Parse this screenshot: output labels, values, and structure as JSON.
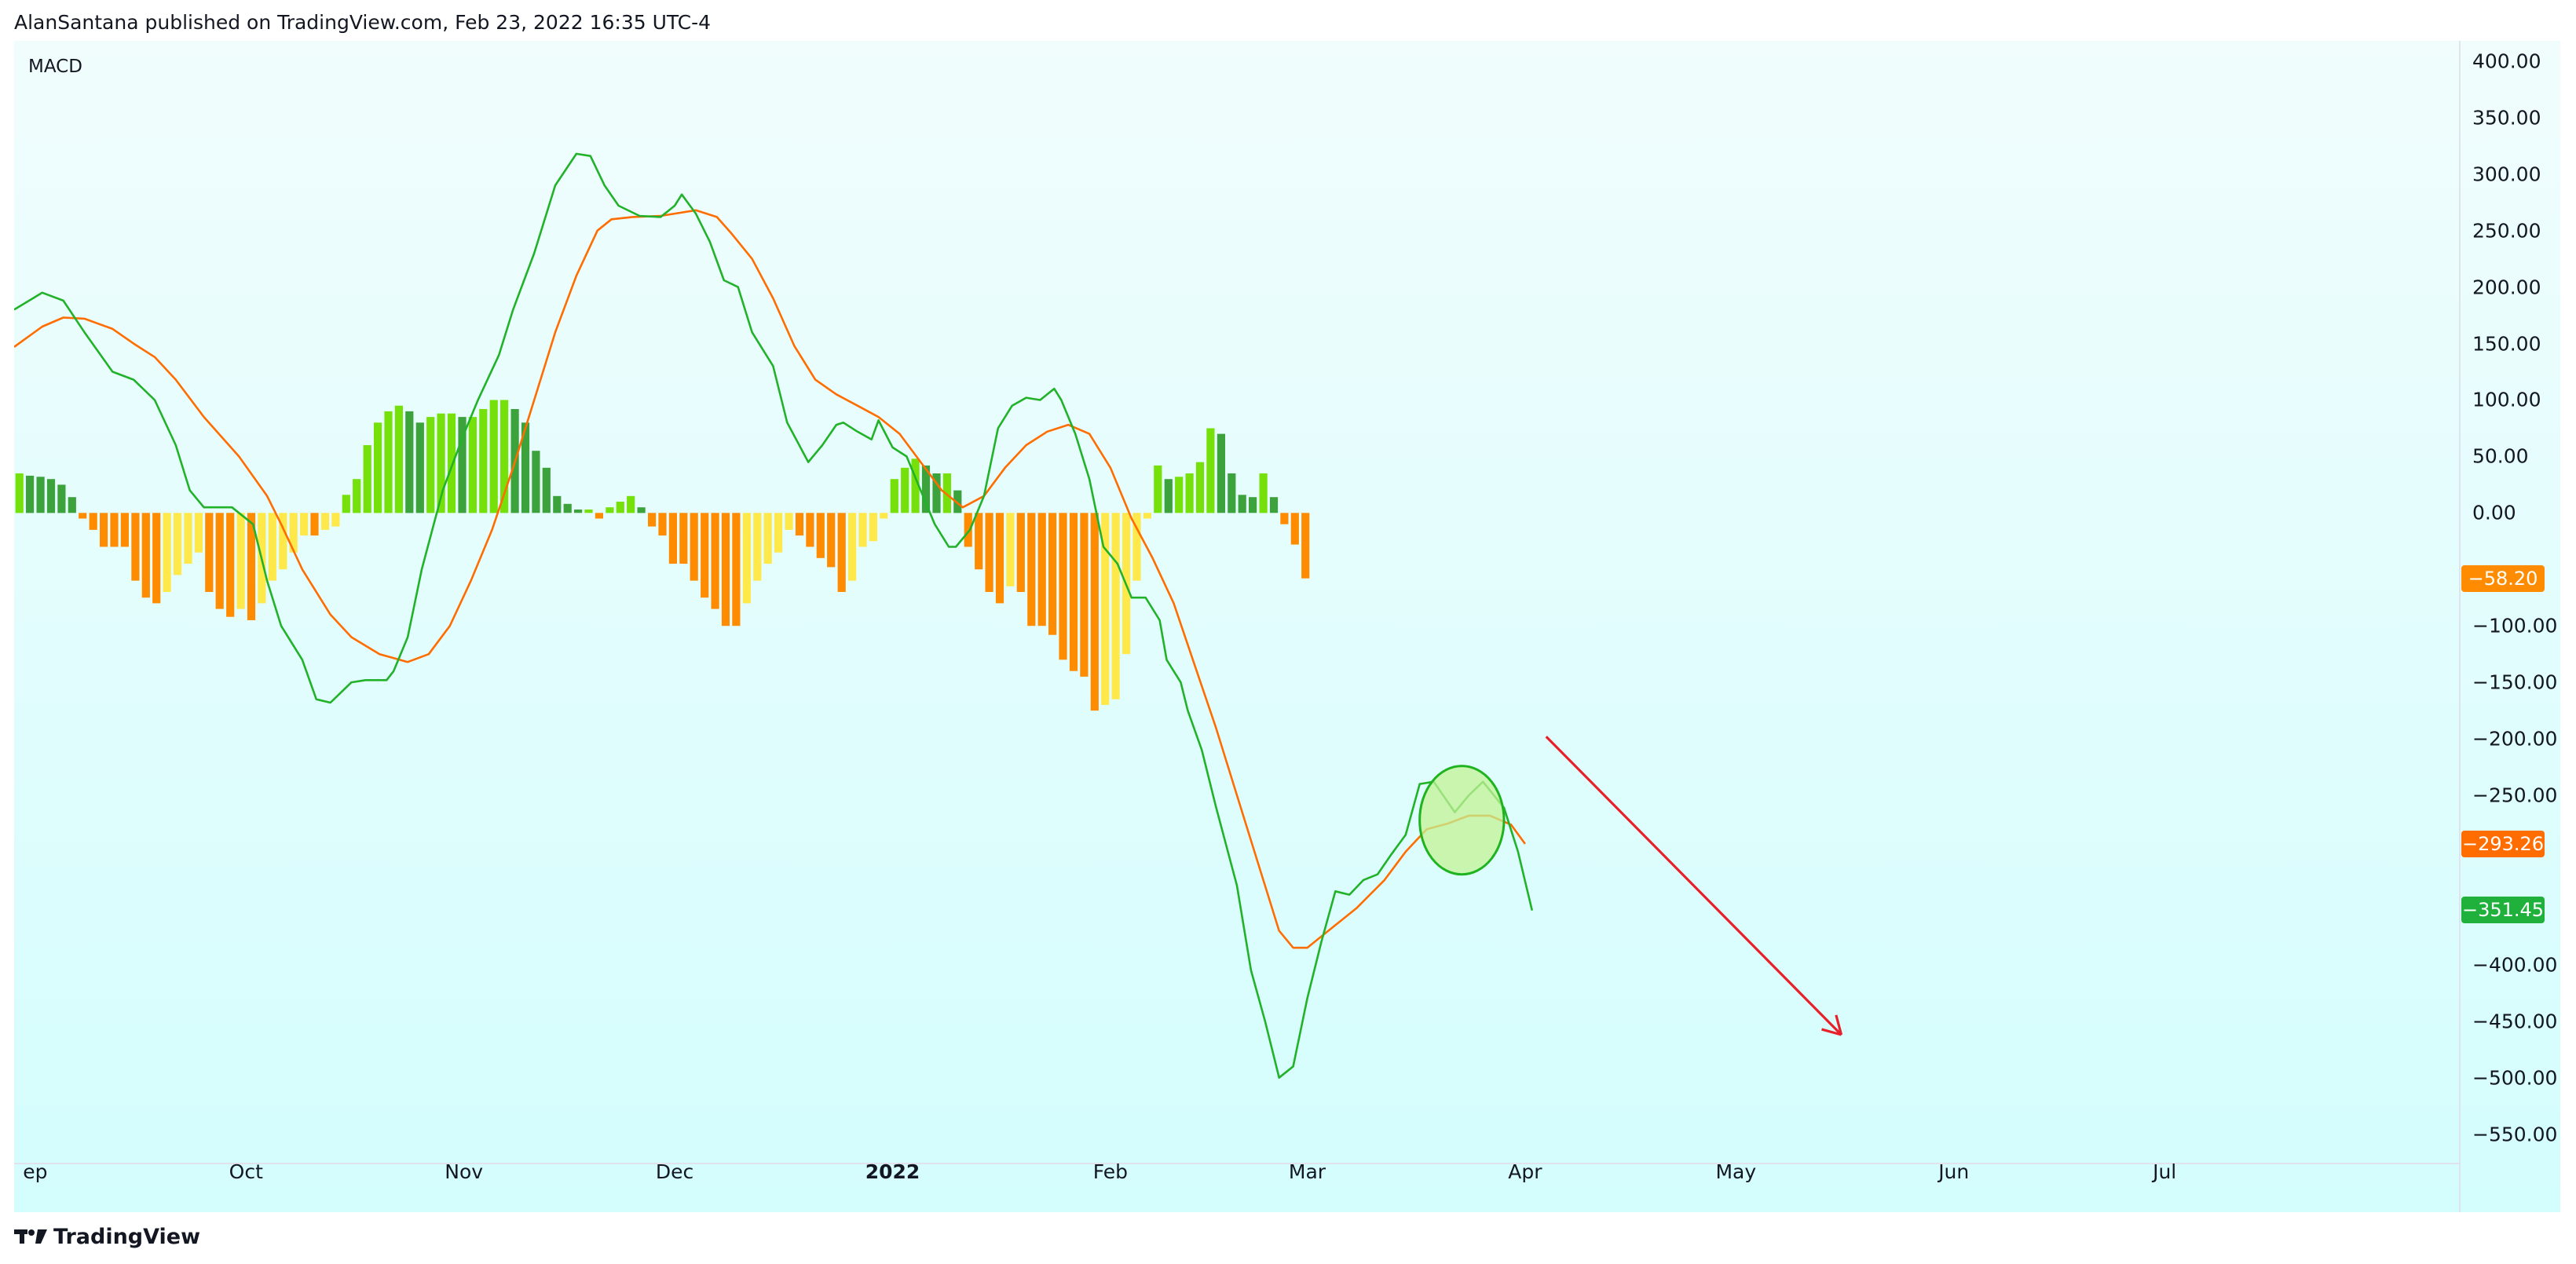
{
  "header": {
    "published_line": "AlanSantana published on TradingView.com, Feb 23, 2022 16:35 UTC-4"
  },
  "footer": {
    "brand": "TradingView",
    "logo_icon": "tradingview-logo-icon"
  },
  "colors": {
    "bg_top": "#f1fdfd",
    "bg_bottom": "#d4fdfd",
    "macd_line": "#22b22a",
    "signal_line": "#ff6d00",
    "hist_pos_grow": "#76e00a",
    "hist_pos_fall": "#3ca23c",
    "hist_neg_fall": "#ff8c00",
    "hist_neg_rise": "#ffe84a",
    "annotation_arrow": "#e8202a",
    "highlight_fill": "#c2f294",
    "highlight_stroke": "#1fb41f"
  },
  "chart_data": {
    "type": "line",
    "title": "MACD",
    "x_axis": {
      "type": "date",
      "range": [
        "2021-08-29",
        "2022-08-12"
      ],
      "tick_labels": [
        {
          "date": "2021-09-01",
          "label": "ep",
          "bold": false
        },
        {
          "date": "2021-10-01",
          "label": "Oct",
          "bold": false
        },
        {
          "date": "2021-11-01",
          "label": "Nov",
          "bold": false
        },
        {
          "date": "2021-12-01",
          "label": "Dec",
          "bold": false
        },
        {
          "date": "2022-01-01",
          "label": "2022",
          "bold": true
        },
        {
          "date": "2022-02-01",
          "label": "Feb",
          "bold": false
        },
        {
          "date": "2022-03-01",
          "label": "Mar",
          "bold": false
        },
        {
          "date": "2022-04-01",
          "label": "Apr",
          "bold": false
        },
        {
          "date": "2022-05-01",
          "label": "May",
          "bold": false
        },
        {
          "date": "2022-06-01",
          "label": "Jun",
          "bold": false
        },
        {
          "date": "2022-07-01",
          "label": "Jul",
          "bold": false
        }
      ]
    },
    "y_axis": {
      "range": [
        -576,
        418
      ],
      "tick_labels": [
        "400.00",
        "350.00",
        "300.00",
        "250.00",
        "200.00",
        "150.00",
        "100.00",
        "50.00",
        "0.00",
        "−100.00",
        "−150.00",
        "−200.00",
        "−250.00",
        "−400.00",
        "−450.00",
        "−500.00",
        "−550.00"
      ],
      "tick_values": [
        400,
        350,
        300,
        250,
        200,
        150,
        100,
        50,
        0,
        -100,
        -150,
        -200,
        -250,
        -400,
        -450,
        -500,
        -550
      ]
    },
    "grid": false,
    "series": [
      {
        "key": "macd",
        "kind": "line",
        "points": [
          [
            "2021-08-29",
            180
          ],
          [
            "2021-09-02",
            195
          ],
          [
            "2021-09-05",
            188
          ],
          [
            "2021-09-08",
            160
          ],
          [
            "2021-09-12",
            125
          ],
          [
            "2021-09-15",
            118
          ],
          [
            "2021-09-18",
            100
          ],
          [
            "2021-09-21",
            60
          ],
          [
            "2021-09-23",
            20
          ],
          [
            "2021-09-25",
            5
          ],
          [
            "2021-09-29",
            5
          ],
          [
            "2021-10-02",
            -10
          ],
          [
            "2021-10-04",
            -60
          ],
          [
            "2021-10-06",
            -100
          ],
          [
            "2021-10-09",
            -130
          ],
          [
            "2021-10-11",
            -165
          ],
          [
            "2021-10-13",
            -168
          ],
          [
            "2021-10-16",
            -150
          ],
          [
            "2021-10-18",
            -148
          ],
          [
            "2021-10-21",
            -148
          ],
          [
            "2021-10-22",
            -140
          ],
          [
            "2021-10-24",
            -110
          ],
          [
            "2021-10-26",
            -50
          ],
          [
            "2021-10-29",
            20
          ],
          [
            "2021-11-01",
            70
          ],
          [
            "2021-11-03",
            100
          ],
          [
            "2021-11-06",
            140
          ],
          [
            "2021-11-08",
            180
          ],
          [
            "2021-11-11",
            230
          ],
          [
            "2021-11-14",
            290
          ],
          [
            "2021-11-17",
            318
          ],
          [
            "2021-11-19",
            316
          ],
          [
            "2021-11-21",
            290
          ],
          [
            "2021-11-23",
            272
          ],
          [
            "2021-11-26",
            263
          ],
          [
            "2021-11-29",
            262
          ],
          [
            "2021-12-01",
            272
          ],
          [
            "2021-12-02",
            282
          ],
          [
            "2021-12-04",
            265
          ],
          [
            "2021-12-06",
            240
          ],
          [
            "2021-12-08",
            206
          ],
          [
            "2021-12-10",
            200
          ],
          [
            "2021-12-12",
            160
          ],
          [
            "2021-12-15",
            130
          ],
          [
            "2021-12-17",
            80
          ],
          [
            "2021-12-20",
            45
          ],
          [
            "2021-12-22",
            60
          ],
          [
            "2021-12-24",
            78
          ],
          [
            "2021-12-25",
            80
          ],
          [
            "2021-12-27",
            72
          ],
          [
            "2021-12-29",
            65
          ],
          [
            "2021-12-30",
            82
          ],
          [
            "2022-01-01",
            58
          ],
          [
            "2022-01-03",
            50
          ],
          [
            "2022-01-05",
            20
          ],
          [
            "2022-01-07",
            -10
          ],
          [
            "2022-01-09",
            -30
          ],
          [
            "2022-01-10",
            -30
          ],
          [
            "2022-01-12",
            -15
          ],
          [
            "2022-01-14",
            15
          ],
          [
            "2022-01-16",
            75
          ],
          [
            "2022-01-18",
            95
          ],
          [
            "2022-01-20",
            102
          ],
          [
            "2022-01-22",
            100
          ],
          [
            "2022-01-24",
            110
          ],
          [
            "2022-01-25",
            100
          ],
          [
            "2022-01-27",
            70
          ],
          [
            "2022-01-29",
            30
          ],
          [
            "2022-01-31",
            -30
          ],
          [
            "2022-02-02",
            -45
          ],
          [
            "2022-02-04",
            -75
          ],
          [
            "2022-02-06",
            -75
          ],
          [
            "2022-02-08",
            -95
          ],
          [
            "2022-02-09",
            -130
          ],
          [
            "2022-02-11",
            -150
          ],
          [
            "2022-02-12",
            -175
          ],
          [
            "2022-02-14",
            -210
          ],
          [
            "2022-02-16",
            -260
          ],
          [
            "2022-02-19",
            -330
          ],
          [
            "2022-02-21",
            -405
          ],
          [
            "2022-02-23",
            -450
          ],
          [
            "2022-02-25",
            -500
          ],
          [
            "2022-02-27",
            -490
          ],
          [
            "2022-03-01",
            -430
          ],
          [
            "2022-03-03",
            -380
          ],
          [
            "2022-03-05",
            -335
          ],
          [
            "2022-03-07",
            -338
          ],
          [
            "2022-03-09",
            -325
          ],
          [
            "2022-03-11",
            -320
          ],
          [
            "2022-03-13",
            -302
          ],
          [
            "2022-03-15",
            -285
          ],
          [
            "2022-03-17",
            -240
          ],
          [
            "2022-03-19",
            -238
          ],
          [
            "2022-03-22",
            -265
          ],
          [
            "2022-03-24",
            -250
          ],
          [
            "2022-03-26",
            -238
          ],
          [
            "2022-03-29",
            -261
          ],
          [
            "2022-03-31",
            -300
          ],
          [
            "2022-04-02",
            -352
          ]
        ]
      },
      {
        "key": "signal",
        "kind": "line",
        "points": [
          [
            "2021-08-29",
            147
          ],
          [
            "2021-09-02",
            165
          ],
          [
            "2021-09-05",
            173
          ],
          [
            "2021-09-08",
            172
          ],
          [
            "2021-09-12",
            163
          ],
          [
            "2021-09-15",
            150
          ],
          [
            "2021-09-18",
            138
          ],
          [
            "2021-09-21",
            118
          ],
          [
            "2021-09-25",
            85
          ],
          [
            "2021-09-30",
            50
          ],
          [
            "2021-10-04",
            15
          ],
          [
            "2021-10-06",
            -10
          ],
          [
            "2021-10-09",
            -50
          ],
          [
            "2021-10-13",
            -90
          ],
          [
            "2021-10-16",
            -110
          ],
          [
            "2021-10-20",
            -125
          ],
          [
            "2021-10-24",
            -132
          ],
          [
            "2021-10-27",
            -125
          ],
          [
            "2021-10-30",
            -100
          ],
          [
            "2021-11-02",
            -60
          ],
          [
            "2021-11-05",
            -15
          ],
          [
            "2021-11-08",
            40
          ],
          [
            "2021-11-11",
            100
          ],
          [
            "2021-11-14",
            160
          ],
          [
            "2021-11-17",
            210
          ],
          [
            "2021-11-20",
            250
          ],
          [
            "2021-11-22",
            260
          ],
          [
            "2021-11-25",
            262
          ],
          [
            "2021-11-29",
            263
          ],
          [
            "2021-12-01",
            265
          ],
          [
            "2021-12-04",
            268
          ],
          [
            "2021-12-07",
            262
          ],
          [
            "2021-12-09",
            248
          ],
          [
            "2021-12-12",
            225
          ],
          [
            "2021-12-15",
            190
          ],
          [
            "2021-12-18",
            148
          ],
          [
            "2021-12-21",
            118
          ],
          [
            "2021-12-24",
            105
          ],
          [
            "2021-12-27",
            95
          ],
          [
            "2021-12-30",
            85
          ],
          [
            "2022-01-02",
            70
          ],
          [
            "2022-01-05",
            45
          ],
          [
            "2022-01-08",
            20
          ],
          [
            "2022-01-11",
            5
          ],
          [
            "2022-01-14",
            15
          ],
          [
            "2022-01-17",
            40
          ],
          [
            "2022-01-20",
            60
          ],
          [
            "2022-01-23",
            72
          ],
          [
            "2022-01-26",
            78
          ],
          [
            "2022-01-29",
            70
          ],
          [
            "2022-02-01",
            40
          ],
          [
            "2022-02-04",
            -5
          ],
          [
            "2022-02-07",
            -40
          ],
          [
            "2022-02-10",
            -80
          ],
          [
            "2022-02-13",
            -135
          ],
          [
            "2022-02-16",
            -190
          ],
          [
            "2022-02-19",
            -250
          ],
          [
            "2022-02-22",
            -310
          ],
          [
            "2022-02-25",
            -370
          ],
          [
            "2022-02-27",
            -385
          ],
          [
            "2022-03-01",
            -385
          ],
          [
            "2022-03-04",
            -370
          ],
          [
            "2022-03-08",
            -350
          ],
          [
            "2022-03-12",
            -325
          ],
          [
            "2022-03-15",
            -300
          ],
          [
            "2022-03-18",
            -280
          ],
          [
            "2022-03-21",
            -275
          ],
          [
            "2022-03-24",
            -268
          ],
          [
            "2022-03-27",
            -268
          ],
          [
            "2022-03-30",
            -276
          ],
          [
            "2022-04-01",
            -293
          ]
        ]
      },
      {
        "key": "histogram",
        "kind": "bar",
        "start": "2021-08-29",
        "step_days": 1.5,
        "values": [
          35,
          33,
          32,
          30,
          25,
          14,
          -5,
          -15,
          -30,
          -30,
          -30,
          -60,
          -75,
          -80,
          -70,
          -55,
          -45,
          -35,
          -70,
          -85,
          -92,
          -85,
          -95,
          -80,
          -60,
          -50,
          -35,
          -20,
          -20,
          -15,
          -12,
          16,
          30,
          60,
          80,
          90,
          95,
          90,
          80,
          85,
          88,
          88,
          85,
          85,
          92,
          100,
          100,
          92,
          80,
          55,
          40,
          15,
          8,
          3,
          3,
          -5,
          5,
          10,
          15,
          5,
          -12,
          -20,
          -45,
          -45,
          -60,
          -75,
          -85,
          -100,
          -100,
          -80,
          -60,
          -45,
          -35,
          -15,
          -20,
          -30,
          -40,
          -48,
          -70,
          -60,
          -30,
          -25,
          -5,
          30,
          40,
          48,
          42,
          35,
          35,
          20,
          -30,
          -50,
          -70,
          -80,
          -65,
          -70,
          -100,
          -100,
          -108,
          -130,
          -140,
          -145,
          -175,
          -170,
          -165,
          -125,
          -60,
          -5,
          42,
          30,
          32,
          35,
          45,
          75,
          70,
          35,
          16,
          14,
          35,
          14,
          -10,
          -28,
          -58
        ]
      }
    ],
    "last_values": [
      {
        "series": "histogram",
        "label": "−58.20",
        "value": -58.2,
        "color": "#ff8c00"
      },
      {
        "series": "signal",
        "label": "−293.26",
        "value": -293.26,
        "color": "#ff6d00"
      },
      {
        "series": "macd",
        "label": "−351.45",
        "value": -351.45,
        "color": "#1fb13c"
      }
    ],
    "annotations": [
      {
        "kind": "ellipse",
        "center": [
          "2022-03-23",
          -272
        ],
        "rx_days": 6,
        "ry_value": 48
      },
      {
        "kind": "arrow",
        "from": [
          "2022-04-04",
          -198
        ],
        "to": [
          "2022-05-16",
          -462
        ]
      }
    ]
  }
}
